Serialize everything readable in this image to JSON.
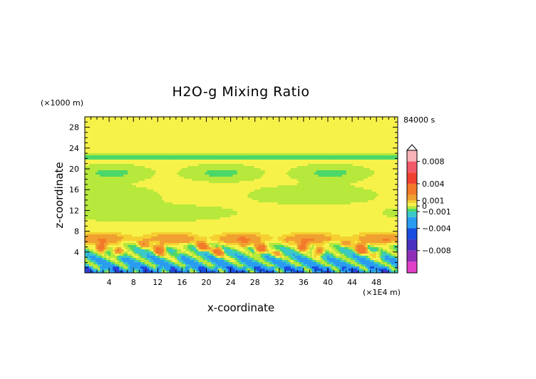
{
  "chart_data": {
    "type": "heatmap",
    "title": "H2O-g Mixing Ratio",
    "xlabel": "x-coordinate",
    "ylabel": "z-coordinate",
    "x_unit": "(×1E4 m)",
    "y_unit": "(×1000 m)",
    "time_label": "84000 s",
    "xlim": [
      0,
      51.5
    ],
    "ylim": [
      0,
      30
    ],
    "x_ticks": [
      4,
      8,
      12,
      16,
      20,
      24,
      28,
      32,
      36,
      40,
      44,
      48
    ],
    "y_ticks": [
      4,
      8,
      12,
      16,
      20,
      24,
      28
    ],
    "colorbar": {
      "labels": [
        {
          "text": "0.008",
          "value": 0.008
        },
        {
          "text": "0.004",
          "value": 0.004
        },
        {
          "text": "0.001",
          "value": 0.001
        },
        {
          "text": "0",
          "value": 0
        },
        {
          "text": "−0.001",
          "value": -0.001
        },
        {
          "text": "−0.004",
          "value": -0.004
        },
        {
          "text": "−0.008",
          "value": -0.008
        }
      ],
      "levels": [
        {
          "min": 0.008,
          "max": 0.01,
          "color": "#f7b3b8"
        },
        {
          "min": 0.006,
          "max": 0.008,
          "color": "#f25a6a"
        },
        {
          "min": 0.004,
          "max": 0.006,
          "color": "#f04030"
        },
        {
          "min": 0.002,
          "max": 0.004,
          "color": "#f27a2a"
        },
        {
          "min": 0.001,
          "max": 0.002,
          "color": "#f0a030"
        },
        {
          "min": 0.0005,
          "max": 0.001,
          "color": "#f5d030"
        },
        {
          "min": 0.0,
          "max": 0.0005,
          "color": "#f7f24a"
        },
        {
          "min": -0.0005,
          "max": 0.0,
          "color": "#b7e83c"
        },
        {
          "min": -0.001,
          "max": -0.0005,
          "color": "#4cd868"
        },
        {
          "min": -0.002,
          "max": -0.001,
          "color": "#3bc8c8"
        },
        {
          "min": -0.004,
          "max": -0.002,
          "color": "#2a9cf0"
        },
        {
          "min": -0.006,
          "max": -0.004,
          "color": "#1a4ee0"
        },
        {
          "min": -0.008,
          "max": -0.006,
          "color": "#4a30c0"
        },
        {
          "min": -0.01,
          "max": -0.008,
          "color": "#9030b8"
        },
        {
          "min": -0.012,
          "max": -0.01,
          "color": "#e040c8"
        }
      ]
    }
  }
}
